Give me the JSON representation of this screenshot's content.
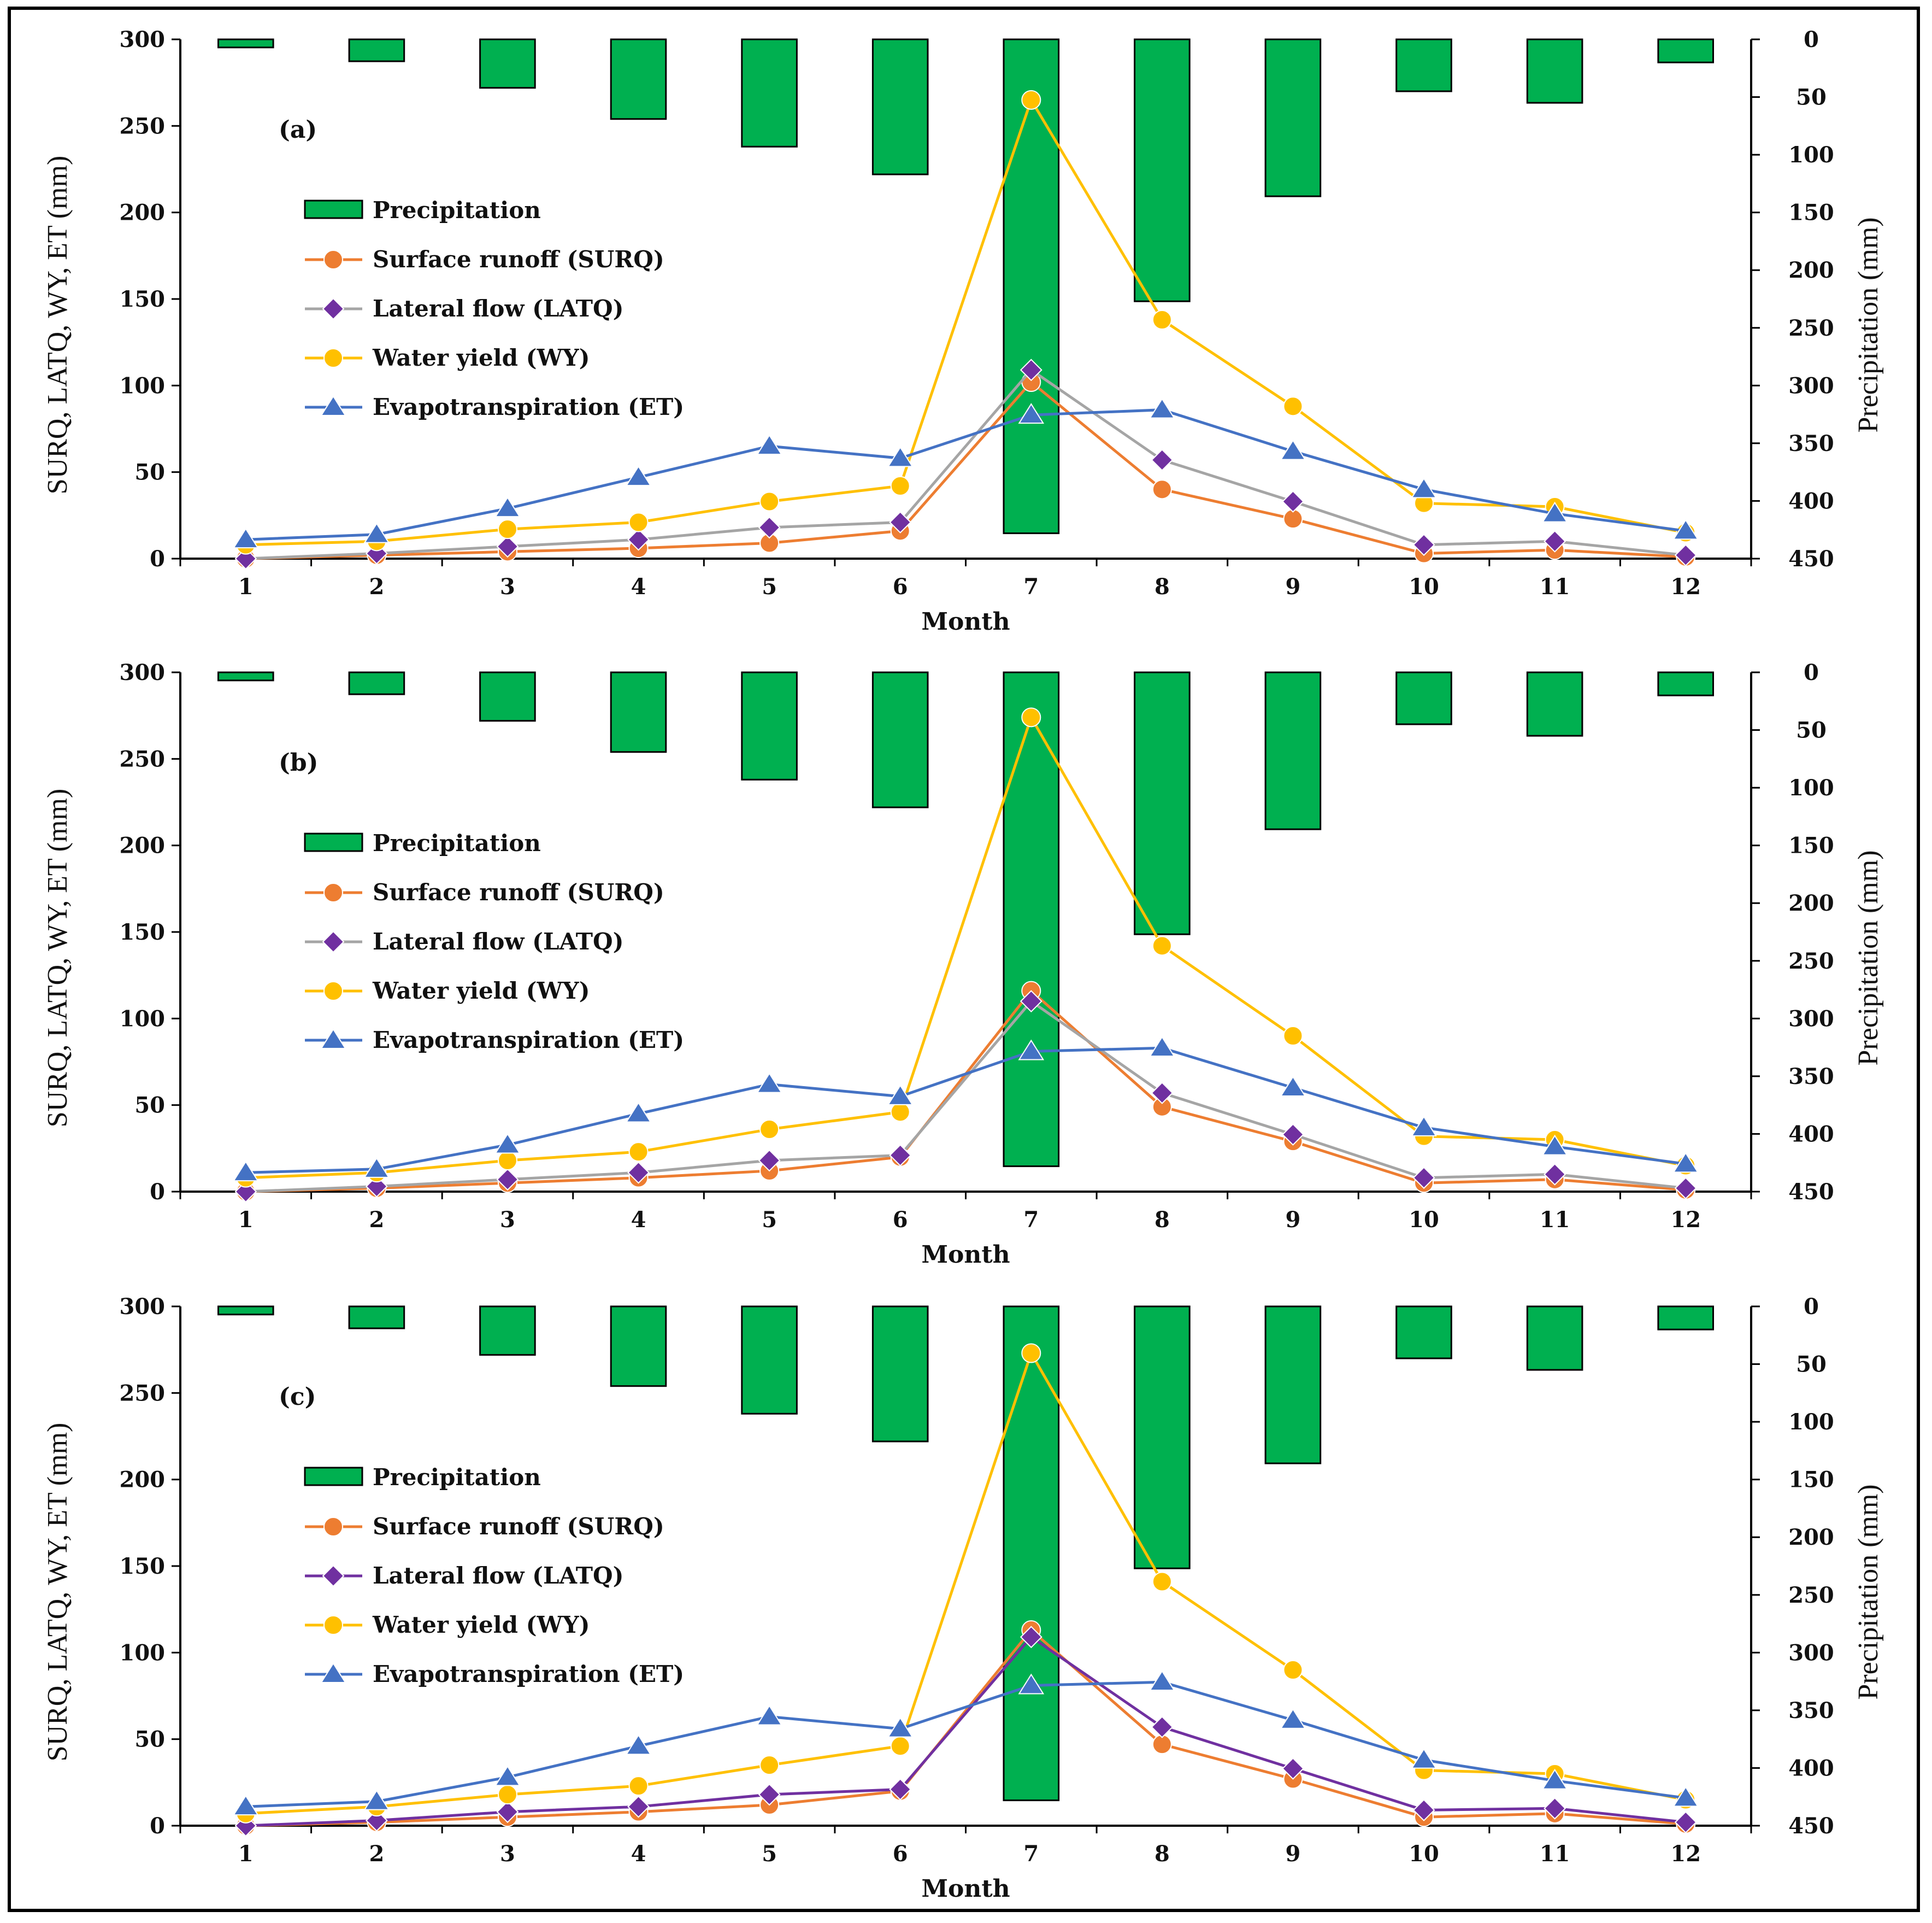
{
  "figure": {
    "border_color": "#000000"
  },
  "chart_data": [
    {
      "type": "line",
      "panel_label": "(a)",
      "xlabel": "Month",
      "ylabel_left": "SURQ, LATQ, WY, ET (mm)",
      "ylabel_right": "Precipitation (mm)",
      "categories": [
        "1",
        "2",
        "3",
        "4",
        "5",
        "6",
        "7",
        "8",
        "9",
        "10",
        "11",
        "12"
      ],
      "ylim_left": [
        0,
        300
      ],
      "ylim_right": [
        0,
        450
      ],
      "yticks_left": [
        "0",
        "50",
        "100",
        "150",
        "200",
        "250",
        "300"
      ],
      "yticks_right": [
        "0",
        "50",
        "100",
        "150",
        "200",
        "250",
        "300",
        "350",
        "400",
        "450"
      ],
      "bars": {
        "name": "Precipitation",
        "axis": "right",
        "inverted": true,
        "color": "#00b050",
        "values": [
          7,
          19,
          42,
          69,
          93,
          117,
          428,
          227,
          136,
          45,
          55,
          20
        ]
      },
      "series": [
        {
          "name": "Surface runoff (SURQ)",
          "color": "#ed7d31",
          "line_color": "#ed7d31",
          "marker": "circle",
          "values": [
            0,
            2,
            4,
            6,
            9,
            16,
            102,
            40,
            23,
            3,
            5,
            1
          ]
        },
        {
          "name": "Lateral flow (LATQ)",
          "color": "#7030a0",
          "line_color": "#a5a5a5",
          "marker": "diamond",
          "values": [
            0,
            3,
            7,
            11,
            18,
            21,
            109,
            57,
            33,
            8,
            10,
            2
          ]
        },
        {
          "name": "Water yield (WY)",
          "color": "#ffc000",
          "line_color": "#ffc000",
          "marker": "circle",
          "values": [
            8,
            10,
            17,
            21,
            33,
            42,
            265,
            138,
            88,
            32,
            30,
            15
          ]
        },
        {
          "name": "Evapotranspiration (ET)",
          "color": "#4472c4",
          "line_color": "#4472c4",
          "marker": "triangle",
          "values": [
            11,
            14,
            29,
            47,
            65,
            58,
            83,
            86,
            62,
            40,
            26,
            16
          ]
        }
      ]
    },
    {
      "type": "line",
      "panel_label": "(b)",
      "xlabel": "Month",
      "ylabel_left": "SURQ, LATQ, WY, ET (mm)",
      "ylabel_right": "Precipitation (mm)",
      "categories": [
        "1",
        "2",
        "3",
        "4",
        "5",
        "6",
        "7",
        "8",
        "9",
        "10",
        "11",
        "12"
      ],
      "ylim_left": [
        0,
        300
      ],
      "ylim_right": [
        0,
        450
      ],
      "yticks_left": [
        "0",
        "50",
        "100",
        "150",
        "200",
        "250",
        "300"
      ],
      "yticks_right": [
        "0",
        "50",
        "100",
        "150",
        "200",
        "250",
        "300",
        "350",
        "400",
        "450"
      ],
      "bars": {
        "name": "Precipitation",
        "axis": "right",
        "inverted": true,
        "color": "#00b050",
        "values": [
          7,
          19,
          42,
          69,
          93,
          117,
          428,
          227,
          136,
          45,
          55,
          20
        ]
      },
      "series": [
        {
          "name": "Surface runoff (SURQ)",
          "color": "#ed7d31",
          "line_color": "#ed7d31",
          "marker": "circle",
          "values": [
            0,
            2,
            5,
            8,
            12,
            20,
            116,
            49,
            29,
            5,
            7,
            1
          ]
        },
        {
          "name": "Lateral flow (LATQ)",
          "color": "#7030a0",
          "line_color": "#a5a5a5",
          "marker": "diamond",
          "values": [
            0,
            3,
            7,
            11,
            18,
            21,
            110,
            57,
            33,
            8,
            10,
            2
          ]
        },
        {
          "name": "Water yield (WY)",
          "color": "#ffc000",
          "line_color": "#ffc000",
          "marker": "circle",
          "values": [
            8,
            11,
            18,
            23,
            36,
            46,
            274,
            142,
            90,
            32,
            30,
            15
          ]
        },
        {
          "name": "Evapotranspiration (ET)",
          "color": "#4472c4",
          "line_color": "#4472c4",
          "marker": "triangle",
          "values": [
            11,
            13,
            27,
            45,
            62,
            55,
            81,
            83,
            60,
            37,
            26,
            16
          ]
        }
      ]
    },
    {
      "type": "line",
      "panel_label": "(c)",
      "xlabel": "Month",
      "ylabel_left": "SURQ, LATQ, WY, ET (mm)",
      "ylabel_right": "Precipitation (mm)",
      "categories": [
        "1",
        "2",
        "3",
        "4",
        "5",
        "6",
        "7",
        "8",
        "9",
        "10",
        "11",
        "12"
      ],
      "ylim_left": [
        0,
        300
      ],
      "ylim_right": [
        0,
        450
      ],
      "yticks_left": [
        "0",
        "50",
        "100",
        "150",
        "200",
        "250",
        "300"
      ],
      "yticks_right": [
        "0",
        "50",
        "100",
        "150",
        "200",
        "250",
        "300",
        "350",
        "400",
        "450"
      ],
      "bars": {
        "name": "Precipitation",
        "axis": "right",
        "inverted": true,
        "color": "#00b050",
        "values": [
          7,
          19,
          42,
          69,
          93,
          117,
          428,
          227,
          136,
          45,
          55,
          20
        ]
      },
      "series": [
        {
          "name": "Surface runoff (SURQ)",
          "color": "#ed7d31",
          "line_color": "#ed7d31",
          "marker": "circle",
          "values": [
            0,
            2,
            5,
            8,
            12,
            20,
            113,
            47,
            27,
            5,
            7,
            1
          ]
        },
        {
          "name": "Lateral flow (LATQ)",
          "color": "#7030a0",
          "line_color": "#7030a0",
          "marker": "diamond",
          "values": [
            0,
            3,
            8,
            11,
            18,
            21,
            109,
            57,
            33,
            9,
            10,
            2
          ]
        },
        {
          "name": "Water yield (WY)",
          "color": "#ffc000",
          "line_color": "#ffc000",
          "marker": "circle",
          "values": [
            7,
            11,
            18,
            23,
            35,
            46,
            273,
            141,
            90,
            32,
            30,
            15
          ]
        },
        {
          "name": "Evapotranspiration (ET)",
          "color": "#4472c4",
          "line_color": "#4472c4",
          "marker": "triangle",
          "values": [
            11,
            14,
            28,
            46,
            63,
            56,
            81,
            83,
            61,
            38,
            26,
            16
          ]
        }
      ]
    }
  ]
}
